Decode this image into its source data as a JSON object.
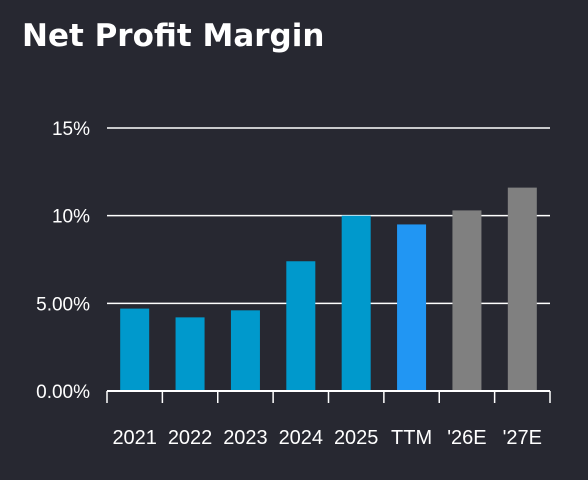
{
  "title": "Net Profit Margin",
  "chart_data": {
    "type": "bar",
    "categories": [
      "2021",
      "2022",
      "2023",
      "2024",
      "2025",
      "TTM",
      "'26E",
      "'27E"
    ],
    "values": [
      4.7,
      4.2,
      4.6,
      7.4,
      10.0,
      9.5,
      10.3,
      11.6
    ],
    "bar_colors": [
      "#0099cc",
      "#0099cc",
      "#0099cc",
      "#0099cc",
      "#0099cc",
      "#2196f3",
      "#808080",
      "#808080"
    ],
    "ylim": [
      0,
      15
    ],
    "yticks": [
      {
        "value": 0,
        "label": "0.00%"
      },
      {
        "value": 5,
        "label": "5.00%"
      },
      {
        "value": 10,
        "label": "10%"
      },
      {
        "value": 15,
        "label": "15%"
      }
    ],
    "grid": true,
    "xlabel": "",
    "ylabel": ""
  }
}
